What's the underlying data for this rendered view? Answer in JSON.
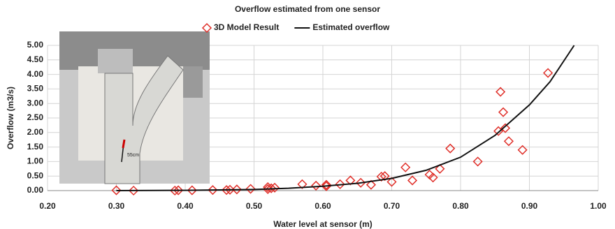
{
  "chart_data": {
    "type": "scatter",
    "title": "Overflow estimated from one sensor",
    "x_label": "Water level at sensor (m)",
    "y_label": "Overflow (m3/s)",
    "inset_annotation": "55cm",
    "grid": true,
    "xlim": [
      0.2,
      1.0
    ],
    "ylim": [
      0,
      5
    ],
    "xticks": [
      {
        "value": 0.2,
        "label": "0.20"
      },
      {
        "value": 0.3,
        "label": "0.30"
      },
      {
        "value": 0.4,
        "label": "0.40"
      },
      {
        "value": 0.5,
        "label": "0.50"
      },
      {
        "value": 0.6,
        "label": "0.60"
      },
      {
        "value": 0.7,
        "label": "0.70"
      },
      {
        "value": 0.8,
        "label": "0.80"
      },
      {
        "value": 0.9,
        "label": "0.90"
      },
      {
        "value": 1.0,
        "label": "1.00"
      }
    ],
    "yticks": [
      {
        "value": 0,
        "label": "0.00"
      },
      {
        "value": 0.5,
        "label": "0.50"
      },
      {
        "value": 1,
        "label": "1.00"
      },
      {
        "value": 1.5,
        "label": "1.50"
      },
      {
        "value": 2,
        "label": "2.00"
      },
      {
        "value": 2.5,
        "label": "2.50"
      },
      {
        "value": 3,
        "label": "3.00"
      },
      {
        "value": 3.5,
        "label": "3.50"
      },
      {
        "value": 4,
        "label": "4.00"
      },
      {
        "value": 4.5,
        "label": "4.50"
      },
      {
        "value": 5,
        "label": "5.00"
      }
    ],
    "series": [
      {
        "name": "3D Model Result",
        "color": "#e0302a",
        "mode": "markers",
        "x": [
          0.3,
          0.325,
          0.385,
          0.39,
          0.41,
          0.44,
          0.46,
          0.465,
          0.475,
          0.495,
          0.52,
          0.52,
          0.525,
          0.53,
          0.57,
          0.59,
          0.605,
          0.605,
          0.625,
          0.64,
          0.655,
          0.67,
          0.685,
          0.69,
          0.7,
          0.72,
          0.73,
          0.755,
          0.76,
          0.77,
          0.785,
          0.825,
          0.855,
          0.858,
          0.862,
          0.865,
          0.87,
          0.89,
          0.927
        ],
        "values": [
          0.01,
          0.0,
          0.0,
          0.01,
          0.01,
          0.02,
          0.02,
          0.03,
          0.04,
          0.06,
          0.12,
          0.05,
          0.08,
          0.1,
          0.22,
          0.17,
          0.15,
          0.2,
          0.22,
          0.35,
          0.27,
          0.2,
          0.48,
          0.5,
          0.3,
          0.8,
          0.35,
          0.55,
          0.45,
          0.75,
          1.45,
          1.0,
          2.05,
          3.4,
          2.7,
          2.15,
          1.7,
          1.4,
          4.05
        ]
      },
      {
        "name": "Estimated overflow",
        "color": "#111111",
        "mode": "line",
        "x": [
          0.3,
          0.4,
          0.5,
          0.55,
          0.6,
          0.65,
          0.7,
          0.75,
          0.8,
          0.85,
          0.9,
          0.93,
          0.965
        ],
        "values": [
          0.0,
          0.01,
          0.04,
          0.08,
          0.15,
          0.25,
          0.42,
          0.7,
          1.15,
          1.9,
          2.95,
          3.75,
          5.0
        ]
      }
    ]
  }
}
